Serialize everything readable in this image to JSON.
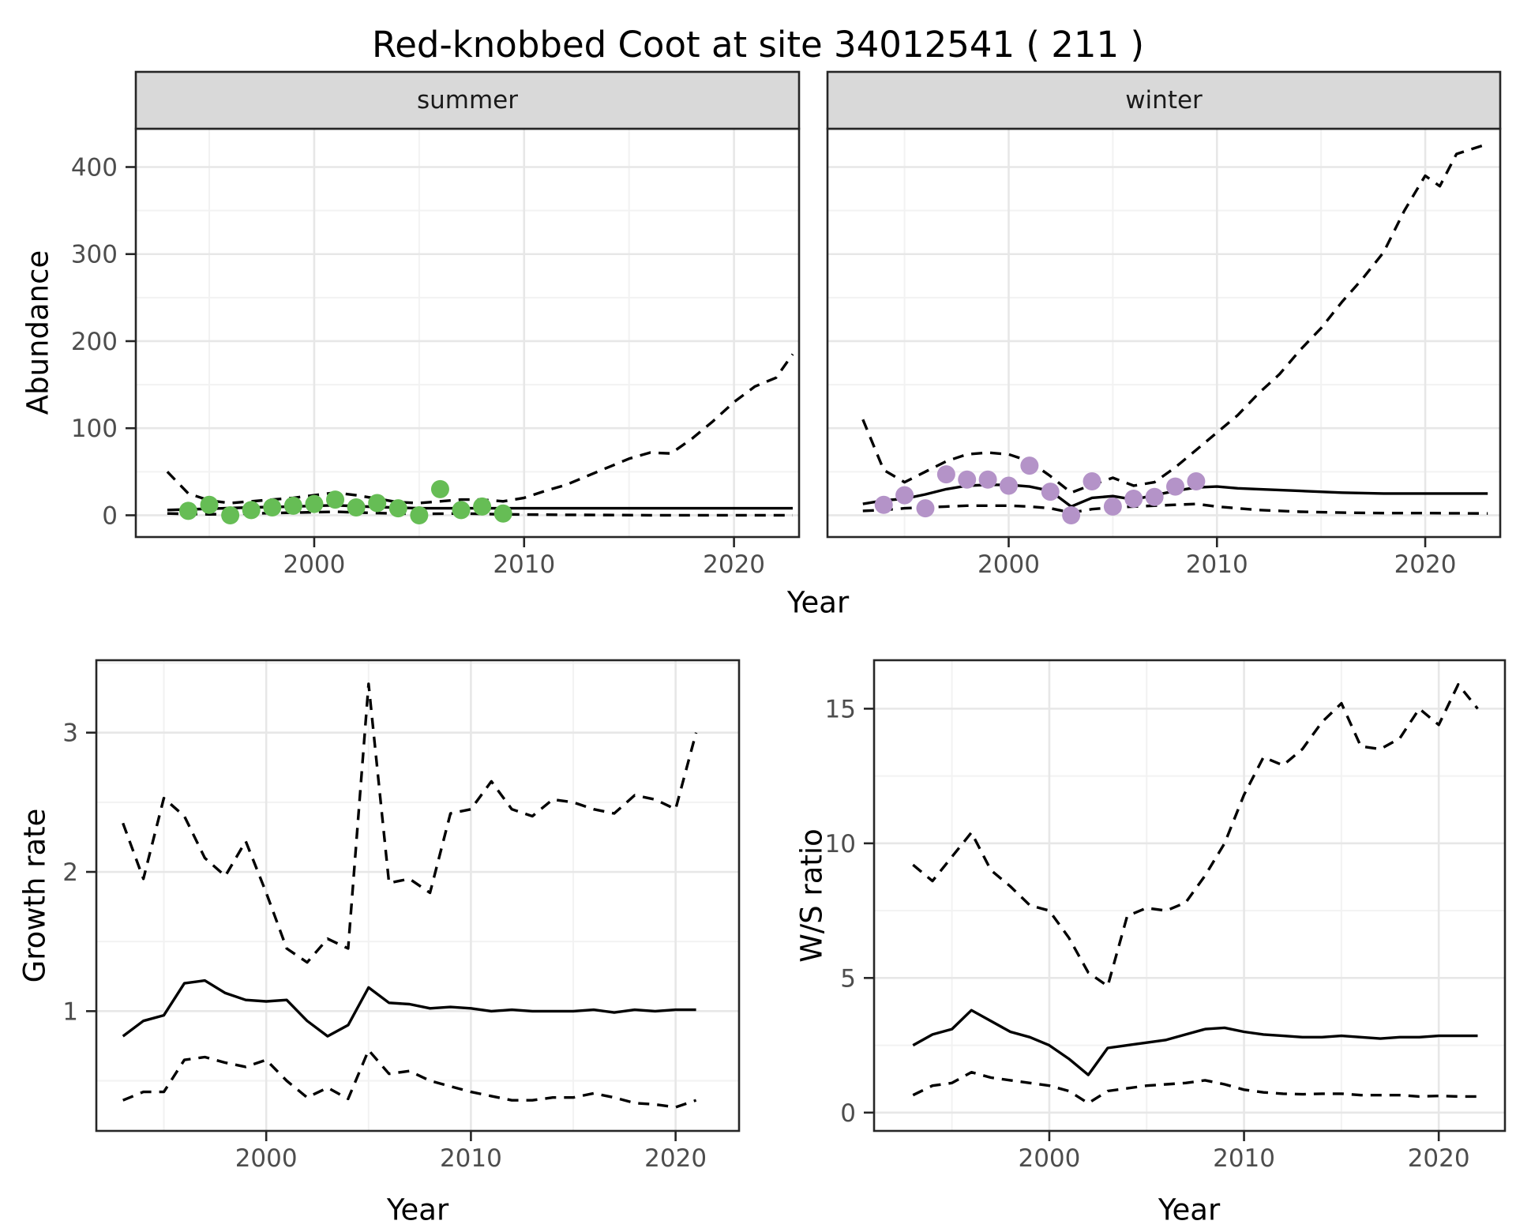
{
  "title": "Red-knobbed Coot at site 34012541 ( 211 )",
  "colors": {
    "summer_point": "#66BD55",
    "winter_point": "#B493C8",
    "line": "#000000",
    "strip_fill": "#D9D9D9",
    "strip_border": "#262626",
    "panel_border": "#262626",
    "grid_major": "#E7E7E7",
    "grid_minor": "#F2F2F2",
    "tick_mark": "#262626",
    "tick_text": "#4D4D4D",
    "background": "#FFFFFF"
  },
  "chart_data": [
    {
      "type": "line",
      "facet_label": "summer",
      "xlabel": "Year",
      "ylabel": "Abundance",
      "xlim": [
        1991.5,
        2023.1
      ],
      "ylim": [
        -25,
        444
      ],
      "xticks": [
        2000,
        2010,
        2020
      ],
      "xticks_minor": [
        1995,
        2005,
        2015
      ],
      "yticks": [
        0,
        100,
        200,
        300,
        400
      ],
      "yticks_minor": [
        50,
        150,
        250,
        350
      ],
      "grid": true,
      "legend": "none",
      "series": [
        {
          "name": "upper_ci",
          "style": "dashed",
          "x": [
            1993,
            1994,
            1995,
            1996,
            1997,
            1998,
            1999,
            2000,
            2001,
            2002,
            2003,
            2004,
            2005,
            2006,
            2007,
            2008,
            2009,
            2010,
            2011,
            2012,
            2013,
            2014,
            2015,
            2016,
            2017,
            2018,
            2019,
            2020,
            2021,
            2022,
            2022.8
          ],
          "y": [
            50,
            25,
            17,
            14,
            16,
            18,
            20,
            23,
            26,
            23,
            19,
            15,
            14,
            16,
            18,
            18,
            16,
            20,
            28,
            35,
            45,
            55,
            65,
            72,
            71,
            88,
            108,
            130,
            148,
            158,
            185
          ]
        },
        {
          "name": "median",
          "style": "solid",
          "x": [
            1993,
            1995,
            1997,
            1999,
            2001,
            2003,
            2005,
            2007,
            2009,
            2012,
            2016,
            2020,
            2022.8
          ],
          "y": [
            6,
            7.5,
            9,
            10,
            11.5,
            9.5,
            8,
            8,
            8,
            8,
            8,
            8,
            8
          ]
        },
        {
          "name": "lower_ci",
          "style": "dashed",
          "x": [
            1993,
            1995,
            1997,
            1999,
            2001,
            2003,
            2005,
            2007,
            2009,
            2012,
            2016,
            2020,
            2022.8
          ],
          "y": [
            2,
            1,
            2,
            3,
            4,
            2.5,
            1.5,
            2,
            1,
            0.5,
            0,
            0,
            0
          ]
        },
        {
          "name": "observed",
          "style": "points",
          "color": "#66BD55",
          "x": [
            1994,
            1995,
            1996,
            1997,
            1998,
            1999,
            2000,
            2001,
            2002,
            2003,
            2004,
            2005,
            2006,
            2007,
            2008,
            2009
          ],
          "y": [
            5,
            12,
            0,
            6,
            9,
            11,
            13,
            18,
            9,
            14,
            8,
            0,
            30,
            6,
            10,
            2
          ]
        }
      ]
    },
    {
      "type": "line",
      "facet_label": "winter",
      "xlabel": "Year",
      "ylabel": "Abundance",
      "xlim": [
        1991.3,
        2023.6
      ],
      "ylim": [
        -25,
        444
      ],
      "xticks": [
        2000,
        2010,
        2020
      ],
      "xticks_minor": [
        1995,
        2005,
        2015
      ],
      "yticks": [
        0,
        100,
        200,
        300,
        400
      ],
      "yticks_minor": [
        50,
        150,
        250,
        350
      ],
      "grid": true,
      "legend": "none",
      "series": [
        {
          "name": "upper_ci",
          "style": "dashed",
          "x": [
            1993,
            1994,
            1995,
            1996,
            1997,
            1998,
            1999,
            2000,
            2001,
            2002,
            2003,
            2004,
            2005,
            2006,
            2007,
            2008,
            2009,
            2010,
            2011,
            2012,
            2013,
            2014,
            2015,
            2016,
            2017,
            2018,
            2019,
            2020,
            2020.7,
            2021.5,
            2022.8
          ],
          "y": [
            110,
            52,
            38,
            50,
            62,
            70,
            72,
            70,
            62,
            45,
            26,
            35,
            43,
            34,
            38,
            55,
            75,
            95,
            115,
            140,
            162,
            190,
            215,
            245,
            272,
            302,
            350,
            390,
            378,
            415,
            425
          ]
        },
        {
          "name": "median",
          "style": "solid",
          "x": [
            1993,
            1994,
            1995,
            1996,
            1997,
            1998,
            1999,
            2000,
            2001,
            2002,
            2003,
            2004,
            2005,
            2006,
            2007,
            2008,
            2009,
            2010,
            2011,
            2012,
            2014,
            2016,
            2018,
            2020,
            2023
          ],
          "y": [
            13,
            17,
            19,
            24,
            30,
            34,
            35,
            35,
            33,
            28,
            10,
            20,
            22,
            18,
            23,
            28,
            32,
            33,
            31,
            30,
            28,
            26,
            25,
            25,
            25
          ]
        },
        {
          "name": "lower_ci",
          "style": "dashed",
          "x": [
            1993,
            1994,
            1995,
            1996,
            1997,
            1998,
            1999,
            2000,
            2001,
            2002,
            2003,
            2004,
            2005,
            2006,
            2007,
            2008,
            2009,
            2010,
            2011,
            2012,
            2014,
            2016,
            2018,
            2020,
            2023
          ],
          "y": [
            5,
            6,
            8,
            9,
            10,
            11,
            11,
            11,
            10,
            8,
            3,
            7,
            9,
            10,
            11,
            12,
            13,
            10,
            8,
            6,
            4,
            3,
            2.5,
            2.5,
            2
          ]
        },
        {
          "name": "observed",
          "style": "points",
          "color": "#B493C8",
          "x": [
            1994,
            1995,
            1996,
            1997,
            1998,
            1999,
            2000,
            2001,
            2002,
            2003,
            2004,
            2005,
            2006,
            2007,
            2008,
            2009
          ],
          "y": [
            12,
            23,
            8,
            47,
            41,
            41,
            34,
            57,
            27,
            0,
            39,
            10,
            19,
            21,
            33,
            39
          ]
        }
      ]
    },
    {
      "type": "line",
      "facet_label": "",
      "xlabel": "Year",
      "ylabel": "Growth rate",
      "xlim": [
        1991.7,
        2023.1
      ],
      "ylim": [
        0.14,
        3.52
      ],
      "xticks": [
        2000,
        2010,
        2020
      ],
      "xticks_minor": [
        1995,
        2005,
        2015
      ],
      "yticks": [
        1,
        2,
        3
      ],
      "yticks_minor": [
        0.5,
        1.5,
        2.5,
        3.5
      ],
      "grid": true,
      "legend": "none",
      "series": [
        {
          "name": "upper_ci",
          "style": "dashed",
          "x": [
            1993,
            1994,
            1995,
            1996,
            1997,
            1998,
            1999,
            2000,
            2001,
            2002,
            2003,
            2004,
            2005,
            2006,
            2007,
            2008,
            2009,
            2010,
            2011,
            2012,
            2013,
            2014,
            2015,
            2016,
            2017,
            2018,
            2019,
            2020,
            2021
          ],
          "y": [
            2.35,
            1.95,
            2.53,
            2.4,
            2.1,
            1.97,
            2.22,
            1.85,
            1.45,
            1.35,
            1.52,
            1.45,
            3.35,
            1.92,
            1.95,
            1.85,
            2.42,
            2.45,
            2.65,
            2.45,
            2.4,
            2.52,
            2.5,
            2.45,
            2.42,
            2.55,
            2.52,
            2.45,
            3.0
          ]
        },
        {
          "name": "median",
          "style": "solid",
          "x": [
            1993,
            1994,
            1995,
            1996,
            1997,
            1998,
            1999,
            2000,
            2001,
            2002,
            2003,
            2004,
            2005,
            2006,
            2007,
            2008,
            2009,
            2010,
            2011,
            2012,
            2013,
            2014,
            2015,
            2016,
            2017,
            2018,
            2019,
            2020,
            2021
          ],
          "y": [
            0.82,
            0.93,
            0.97,
            1.2,
            1.22,
            1.13,
            1.08,
            1.07,
            1.08,
            0.93,
            0.82,
            0.9,
            1.17,
            1.06,
            1.05,
            1.02,
            1.03,
            1.02,
            1.0,
            1.01,
            1.0,
            1.0,
            1.0,
            1.01,
            0.99,
            1.01,
            1.0,
            1.01,
            1.01
          ]
        },
        {
          "name": "lower_ci",
          "style": "dashed",
          "x": [
            1993,
            1994,
            1995,
            1996,
            1997,
            1998,
            1999,
            2000,
            2001,
            2002,
            2003,
            2004,
            2005,
            2006,
            2007,
            2008,
            2009,
            2010,
            2011,
            2012,
            2013,
            2014,
            2015,
            2016,
            2017,
            2018,
            2019,
            2020,
            2021
          ],
          "y": [
            0.36,
            0.42,
            0.42,
            0.65,
            0.67,
            0.63,
            0.6,
            0.65,
            0.5,
            0.38,
            0.45,
            0.37,
            0.72,
            0.55,
            0.57,
            0.5,
            0.46,
            0.42,
            0.39,
            0.36,
            0.36,
            0.38,
            0.38,
            0.41,
            0.38,
            0.34,
            0.33,
            0.31,
            0.36
          ]
        }
      ]
    },
    {
      "type": "line",
      "facet_label": "",
      "xlabel": "Year",
      "ylabel": "W/S ratio",
      "xlim": [
        1991.0,
        2023.4
      ],
      "ylim": [
        -0.68,
        16.8
      ],
      "xticks": [
        2000,
        2010,
        2020
      ],
      "xticks_minor": [
        1995,
        2005,
        2015
      ],
      "yticks": [
        0,
        5,
        10,
        15
      ],
      "yticks_minor": [
        2.5,
        7.5,
        12.5
      ],
      "grid": true,
      "legend": "none",
      "series": [
        {
          "name": "upper_ci",
          "style": "dashed",
          "x": [
            1993,
            1994,
            1995,
            1996,
            1997,
            1998,
            1999,
            2000,
            2001,
            2002,
            2003,
            2004,
            2005,
            2006,
            2007,
            2008,
            2009,
            2010,
            2011,
            2012,
            2013,
            2014,
            2015,
            2016,
            2017,
            2018,
            2019,
            2020,
            2021,
            2022
          ],
          "y": [
            9.2,
            8.6,
            9.5,
            10.4,
            9.0,
            8.4,
            7.7,
            7.5,
            6.5,
            5.2,
            4.7,
            7.3,
            7.6,
            7.5,
            7.8,
            8.8,
            10.0,
            11.8,
            13.2,
            12.9,
            13.5,
            14.5,
            15.2,
            13.6,
            13.5,
            13.9,
            15.0,
            14.4,
            15.9,
            15.0
          ]
        },
        {
          "name": "median",
          "style": "solid",
          "x": [
            1993,
            1994,
            1995,
            1996,
            1997,
            1998,
            1999,
            2000,
            2001,
            2002,
            2003,
            2004,
            2005,
            2006,
            2007,
            2008,
            2009,
            2010,
            2011,
            2012,
            2013,
            2014,
            2015,
            2016,
            2017,
            2018,
            2019,
            2020,
            2021,
            2022
          ],
          "y": [
            2.5,
            2.9,
            3.1,
            3.8,
            3.4,
            3.0,
            2.8,
            2.5,
            2.0,
            1.4,
            2.4,
            2.5,
            2.6,
            2.7,
            2.9,
            3.1,
            3.15,
            3.0,
            2.9,
            2.85,
            2.8,
            2.8,
            2.85,
            2.8,
            2.75,
            2.8,
            2.8,
            2.85,
            2.85,
            2.85
          ]
        },
        {
          "name": "lower_ci",
          "style": "dashed",
          "x": [
            1993,
            1994,
            1995,
            1996,
            1997,
            1998,
            1999,
            2000,
            2001,
            2002,
            2003,
            2004,
            2005,
            2006,
            2007,
            2008,
            2009,
            2010,
            2011,
            2012,
            2013,
            2014,
            2015,
            2016,
            2017,
            2018,
            2019,
            2020,
            2021,
            2022
          ],
          "y": [
            0.65,
            1.0,
            1.1,
            1.5,
            1.3,
            1.2,
            1.1,
            1.0,
            0.8,
            0.35,
            0.8,
            0.9,
            1.0,
            1.05,
            1.1,
            1.2,
            1.05,
            0.85,
            0.75,
            0.7,
            0.68,
            0.7,
            0.7,
            0.65,
            0.65,
            0.65,
            0.6,
            0.62,
            0.6,
            0.6
          ]
        }
      ]
    }
  ]
}
